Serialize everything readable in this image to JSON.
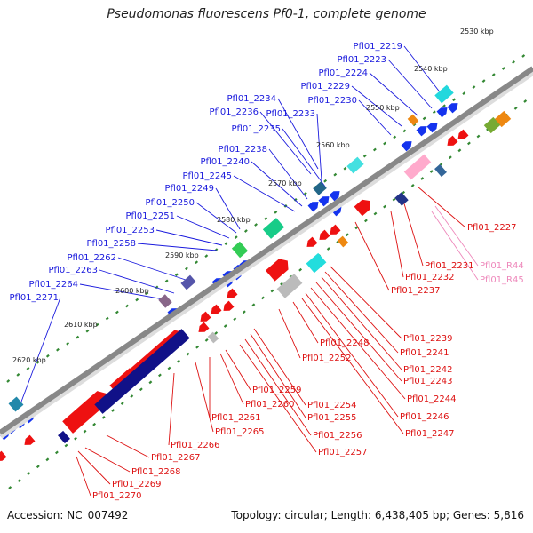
{
  "title": "Pseudomonas fluorescens Pf0-1, complete genome",
  "accession": "Accession: NC_007492",
  "summary": "Topology: circular; Length: 6,438,405 bp; Genes: 5,816",
  "colors": {
    "forward_label": "#1a1add",
    "reverse_label": "#dd1111",
    "rna_label": "#ee88bb",
    "backbone": "#888888",
    "ticks": "#338833"
  },
  "scale_labels": [
    "2530 kbp",
    "2540 kbp",
    "2550 kbp",
    "2560 kbp",
    "2570 kbp",
    "2580 kbp",
    "2590 kbp",
    "2600 kbp",
    "2610 kbp",
    "2620 kbp"
  ],
  "forward_genes": [
    "Pfl01_2219",
    "Pfl01_2223",
    "Pfl01_2224",
    "Pfl01_2229",
    "Pfl01_2230",
    "Pfl01_2234",
    "Pfl01_2236",
    "Pfl01_2233",
    "Pfl01_2235",
    "Pfl01_2238",
    "Pfl01_2240",
    "Pfl01_2245",
    "Pfl01_2249",
    "Pfl01_2250",
    "Pfl01_2251",
    "Pfl01_2253",
    "Pfl01_2258",
    "Pfl01_2262",
    "Pfl01_2263",
    "Pfl01_2264",
    "Pfl01_2271"
  ],
  "reverse_genes": [
    "Pfl01_2227",
    "Pfl01_2231",
    "Pfl01_2232",
    "Pfl01_2237",
    "Pfl01_2239",
    "Pfl01_2241",
    "Pfl01_2242",
    "Pfl01_2243",
    "Pfl01_2244",
    "Pfl01_2246",
    "Pfl01_2247",
    "Pfl01_2248",
    "Pfl01_2252",
    "Pfl01_2254",
    "Pfl01_2255",
    "Pfl01_2256",
    "Pfl01_2257",
    "Pfl01_2259",
    "Pfl01_2260",
    "Pfl01_2261",
    "Pfl01_2265",
    "Pfl01_2266",
    "Pfl01_2267",
    "Pfl01_2268",
    "Pfl01_2269",
    "Pfl01_2270"
  ],
  "rna_genes": [
    "Pfl01_R44",
    "Pfl01_R45"
  ]
}
